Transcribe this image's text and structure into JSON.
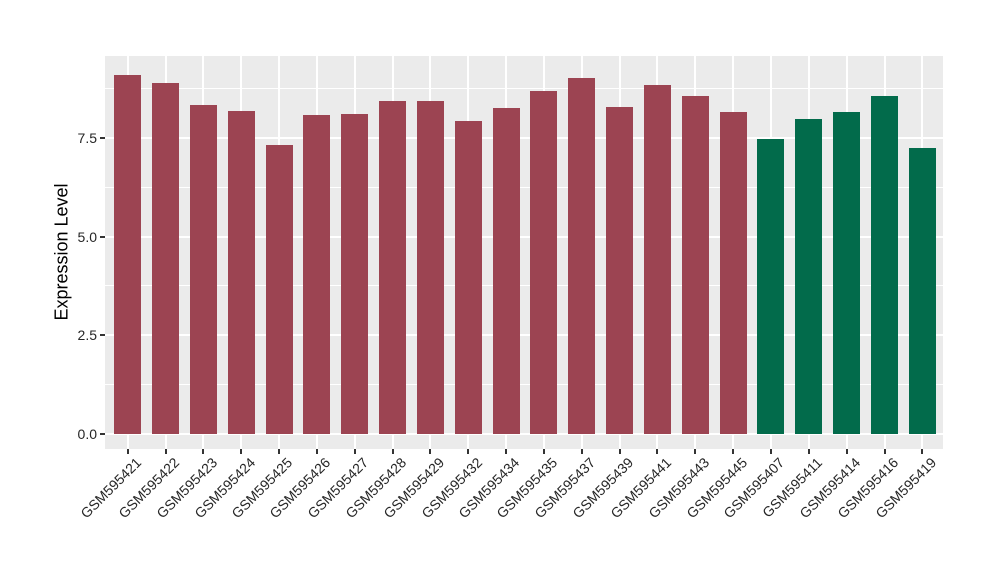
{
  "chart": {
    "y_axis_title": "Expression Level",
    "colors": {
      "panel_background": "#EBEBEB",
      "gridline": "#FFFFFF",
      "bar_red": "#9C4452",
      "bar_green": "#026B4B",
      "tick_mark": "#333333",
      "tick_label_text": "#262626",
      "axis_title_text": "#000000"
    }
  },
  "chart_data": {
    "type": "bar",
    "title": "",
    "xlabel": "",
    "ylabel": "Expression Level",
    "categories": [
      "GSM595421",
      "GSM595422",
      "GSM595423",
      "GSM595424",
      "GSM595425",
      "GSM595426",
      "GSM595427",
      "GSM595428",
      "GSM595429",
      "GSM595432",
      "GSM595434",
      "GSM595435",
      "GSM595437",
      "GSM595439",
      "GSM595441",
      "GSM595443",
      "GSM595445",
      "GSM595407",
      "GSM595411",
      "GSM595414",
      "GSM595416",
      "GSM595419"
    ],
    "values": [
      9.09,
      8.89,
      8.33,
      8.18,
      7.31,
      8.07,
      8.1,
      8.43,
      8.43,
      7.93,
      8.25,
      8.69,
      9.02,
      8.29,
      8.84,
      8.56,
      8.15,
      7.46,
      7.98,
      8.15,
      8.55,
      7.23
    ],
    "bar_groups": [
      "red",
      "red",
      "red",
      "red",
      "red",
      "red",
      "red",
      "red",
      "red",
      "red",
      "red",
      "red",
      "red",
      "red",
      "red",
      "red",
      "red",
      "green",
      "green",
      "green",
      "green",
      "green"
    ],
    "group_colors": {
      "red": "#9C4452",
      "green": "#026B4B"
    },
    "ylim": [
      0,
      9.57
    ],
    "yticks": [
      0,
      2.5,
      5,
      7.5
    ],
    "ytick_labels": [
      "0.0",
      "2.5",
      "5.0",
      "7.5"
    ],
    "minor_gridlines": [
      1.25,
      3.75,
      6.25,
      8.75
    ],
    "x_labels_rotation_deg": 45,
    "grid": "on",
    "legend_position": "none"
  }
}
